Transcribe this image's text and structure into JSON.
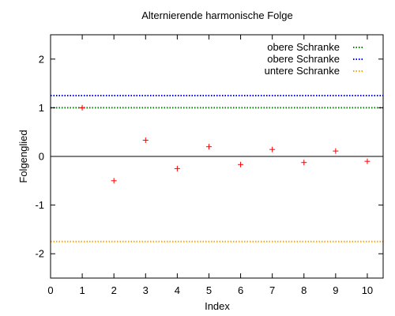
{
  "chart_data": {
    "type": "scatter",
    "title": "Alternierende harmonische Folge",
    "xlabel": "Index",
    "ylabel": "Folgenglied",
    "xlim": [
      0,
      10.5
    ],
    "ylim": [
      -2.5,
      2.5
    ],
    "xticks": [
      0,
      1,
      2,
      3,
      4,
      5,
      6,
      7,
      8,
      9,
      10
    ],
    "yticks": [
      -2,
      -1,
      0,
      1,
      2
    ],
    "zero_line": true,
    "grid": false,
    "legend_position": "top-right",
    "points": {
      "marker": "plus",
      "color": "#ff0000",
      "x": [
        1,
        2,
        3,
        4,
        5,
        6,
        7,
        8,
        9,
        10
      ],
      "y": [
        1,
        -0.5,
        0.333,
        -0.25,
        0.2,
        -0.167,
        0.143,
        -0.125,
        0.111,
        -0.1
      ]
    },
    "series": [
      {
        "name": "obere Schranke",
        "y": 1.0,
        "color": "#008000",
        "style": "dotted-line"
      },
      {
        "name": "obere Schranke",
        "y": 1.25,
        "color": "#0000ff",
        "style": "dotted-line"
      },
      {
        "name": "untere Schranke",
        "y": -1.75,
        "color": "#ffa500",
        "style": "dotted-line"
      }
    ]
  }
}
